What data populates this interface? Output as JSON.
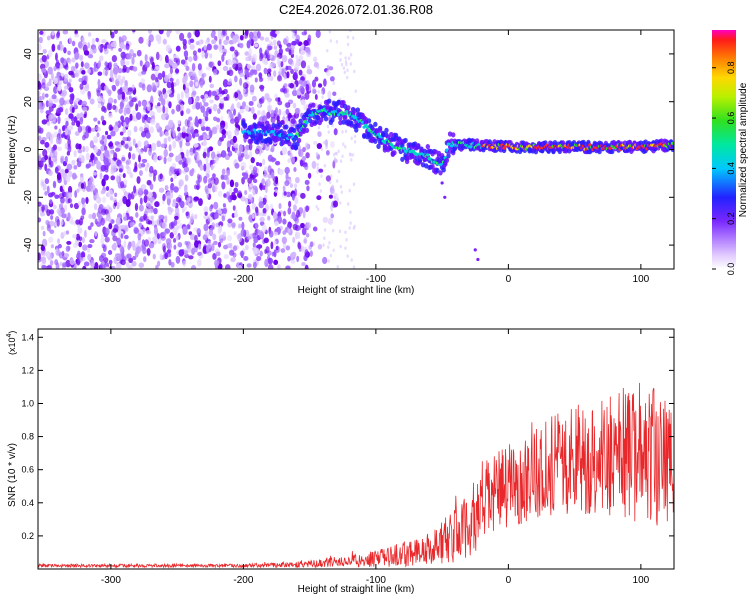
{
  "chart_data": [
    {
      "type": "heatmap",
      "title": "C2E4.2026.072.01.36.R08",
      "xlabel": "Height of straight line (km)",
      "ylabel": "Frequency (Hz)",
      "xlim": [
        -355,
        125
      ],
      "ylim": [
        -50,
        50
      ],
      "xticks": [
        -300,
        -200,
        -100,
        0,
        100
      ],
      "yticks": [
        -40,
        -20,
        0,
        20,
        40
      ],
      "colorbar": {
        "label": "Normalized spectral amplitude",
        "range": [
          0,
          0.95
        ],
        "ticks": [
          0.0,
          0.2,
          0.4,
          0.6,
          0.8
        ],
        "tick_labels": [
          "0.0",
          "0.2",
          "0.4",
          "0.6",
          "0.8"
        ]
      },
      "signal_track": [
        {
          "x": -200,
          "y": 8
        },
        {
          "x": -180,
          "y": 7
        },
        {
          "x": -160,
          "y": 5
        },
        {
          "x": -150,
          "y": 14
        },
        {
          "x": -140,
          "y": 16
        },
        {
          "x": -120,
          "y": 15
        },
        {
          "x": -100,
          "y": 6
        },
        {
          "x": -80,
          "y": 0
        },
        {
          "x": -60,
          "y": -3
        },
        {
          "x": -50,
          "y": -7
        },
        {
          "x": -45,
          "y": 2
        },
        {
          "x": -30,
          "y": 2
        },
        {
          "x": 0,
          "y": 1
        },
        {
          "x": 50,
          "y": 1
        },
        {
          "x": 100,
          "y": 1
        },
        {
          "x": 125,
          "y": 2
        }
      ]
    },
    {
      "type": "line",
      "xlabel": "Height of straight line (km)",
      "ylabel": "SNR (10 * v/v)",
      "yscale_label": "(x10",
      "yscale_exponent": "4",
      "yscale_close": ")",
      "xlim": [
        -355,
        125
      ],
      "ylim": [
        0,
        1.45
      ],
      "xticks": [
        -300,
        -200,
        -100,
        0,
        100
      ],
      "yticks": [
        0.2,
        0.4,
        0.6,
        0.8,
        1.0,
        1.2,
        1.4
      ],
      "ytick_labels": [
        "0.2",
        "0.4",
        "0.6",
        "0.8",
        "1.0",
        "1.2",
        "1.4"
      ],
      "color": "#e8282b",
      "envelope": [
        {
          "x": -355,
          "mean": 0.02,
          "amp": 0.01
        },
        {
          "x": -200,
          "mean": 0.02,
          "amp": 0.01
        },
        {
          "x": -150,
          "mean": 0.03,
          "amp": 0.02
        },
        {
          "x": -100,
          "mean": 0.06,
          "amp": 0.05
        },
        {
          "x": -60,
          "mean": 0.12,
          "amp": 0.1
        },
        {
          "x": -30,
          "mean": 0.25,
          "amp": 0.2
        },
        {
          "x": -20,
          "mean": 0.4,
          "amp": 0.25
        },
        {
          "x": 0,
          "mean": 0.5,
          "amp": 0.25
        },
        {
          "x": 30,
          "mean": 0.62,
          "amp": 0.3
        },
        {
          "x": 60,
          "mean": 0.68,
          "amp": 0.35
        },
        {
          "x": 100,
          "mean": 0.7,
          "amp": 0.45
        },
        {
          "x": 125,
          "mean": 0.62,
          "amp": 0.4
        }
      ]
    }
  ]
}
